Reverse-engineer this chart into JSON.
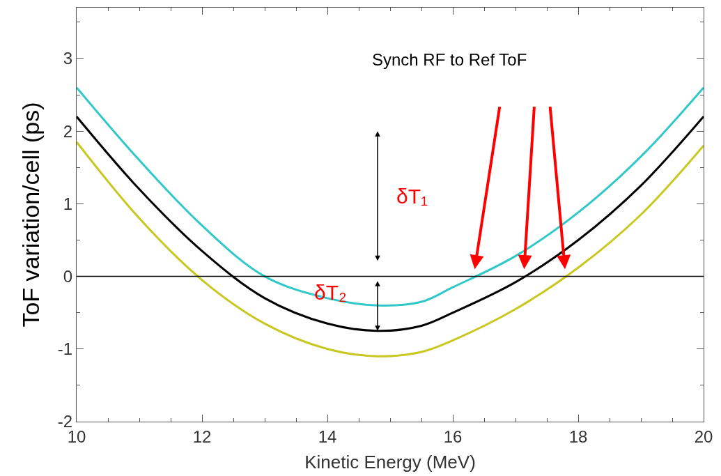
{
  "chart_data": {
    "type": "line",
    "xlabel": "Kinetic Energy (MeV)",
    "ylabel": "ToF variation/cell (ps)",
    "xlim": [
      10,
      20
    ],
    "xticks": [
      10,
      12,
      14,
      16,
      18,
      20
    ],
    "ylim": [
      -2,
      3.7
    ],
    "yticks": [
      -2,
      -1,
      0,
      1,
      2,
      3
    ],
    "legend": false,
    "marker": "none",
    "line_style": "solid",
    "series": [
      {
        "color": "#30c8c8",
        "x": [
          10,
          11,
          12,
          13,
          14,
          14.8,
          15.5,
          16,
          17,
          18,
          19,
          20
        ],
        "values": [
          2.6,
          1.6,
          0.7,
          0,
          -0.3,
          -0.4,
          -0.35,
          -0.15,
          0.28,
          0.88,
          1.65,
          2.6
        ]
      },
      {
        "color": "#000000",
        "x": [
          10,
          11,
          12,
          13,
          14,
          14.8,
          15.5,
          16,
          17,
          18,
          19,
          20
        ],
        "values": [
          2.2,
          1.2,
          0.35,
          -0.3,
          -0.65,
          -0.75,
          -0.68,
          -0.5,
          -0.08,
          0.5,
          1.25,
          2.2
        ]
      },
      {
        "color": "#c8c820",
        "x": [
          10,
          11,
          12,
          13,
          14,
          14.8,
          15.5,
          16,
          17,
          18,
          19,
          20
        ],
        "values": [
          1.85,
          0.8,
          -0.05,
          -0.65,
          -1.0,
          -1.1,
          -1.04,
          -0.88,
          -0.45,
          0.12,
          0.85,
          1.8
        ]
      }
    ],
    "ref_lines": [
      {
        "axis": "y",
        "value": 0,
        "color": "#000000"
      }
    ],
    "annotations": [
      "Synch RF to Ref ToF",
      "δT₁",
      "δT₂"
    ]
  }
}
